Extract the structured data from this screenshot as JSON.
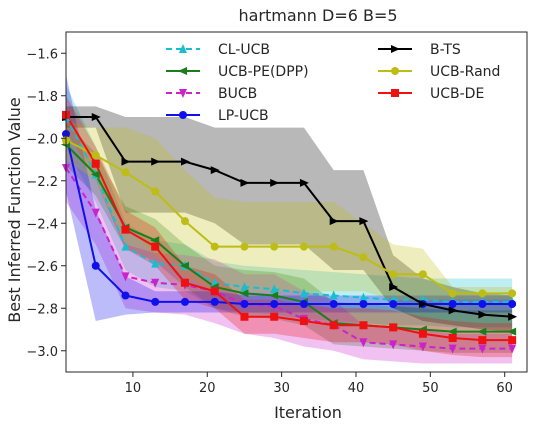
{
  "chart_data": {
    "type": "line",
    "title": "hartmann D=6 B=5",
    "xlabel": "Iteration",
    "ylabel": "Best Inferred Function Value",
    "xlim": [
      1,
      63
    ],
    "ylim": [
      -3.1,
      -1.5
    ],
    "xticks": [
      10,
      20,
      30,
      40,
      50,
      60
    ],
    "yticks": [
      -1.6,
      -1.8,
      -2.0,
      -2.2,
      -2.4,
      -2.6,
      -2.8,
      -3.0
    ],
    "grid": false,
    "legend": "top-center, two columns",
    "x": [
      1,
      5,
      9,
      13,
      17,
      21,
      25,
      29,
      33,
      37,
      41,
      45,
      49,
      53,
      57,
      61
    ],
    "series": [
      {
        "name": "CL-UCB",
        "color": "#17becf",
        "marker": "triangle-up",
        "dash": "dashed",
        "values": [
          -1.9,
          -2.17,
          -2.51,
          -2.59,
          -2.6,
          -2.68,
          -2.7,
          -2.71,
          -2.73,
          -2.74,
          -2.75,
          -2.76,
          -2.76,
          -2.77,
          -2.77,
          -2.77
        ],
        "lower": [
          -2.05,
          -2.3,
          -2.62,
          -2.7,
          -2.72,
          -2.8,
          -2.82,
          -2.83,
          -2.85,
          -2.86,
          -2.87,
          -2.88,
          -2.88,
          -2.89,
          -2.89,
          -2.89
        ],
        "upper": [
          -1.75,
          -2.04,
          -2.4,
          -2.48,
          -2.5,
          -2.58,
          -2.6,
          -2.61,
          -2.62,
          -2.63,
          -2.64,
          -2.65,
          -2.66,
          -2.66,
          -2.66,
          -2.66
        ]
      },
      {
        "name": "UCB-PE(DPP)",
        "color": "#1a7f1a",
        "marker": "triangle-left",
        "dash": "solid",
        "values": [
          -2.03,
          -2.17,
          -2.42,
          -2.48,
          -2.6,
          -2.7,
          -2.73,
          -2.74,
          -2.77,
          -2.87,
          -2.88,
          -2.89,
          -2.9,
          -2.91,
          -2.91,
          -2.91
        ],
        "lower": [
          -2.13,
          -2.27,
          -2.52,
          -2.58,
          -2.7,
          -2.8,
          -2.84,
          -2.85,
          -2.88,
          -2.97,
          -2.98,
          -2.99,
          -3.0,
          -3.01,
          -3.01,
          -3.01
        ],
        "upper": [
          -1.93,
          -2.07,
          -2.32,
          -2.38,
          -2.5,
          -2.6,
          -2.62,
          -2.63,
          -2.66,
          -2.77,
          -2.78,
          -2.79,
          -2.8,
          -2.81,
          -2.81,
          -2.81
        ]
      },
      {
        "name": "BUCB",
        "color": "#cc22cc",
        "marker": "triangle-down",
        "dash": "dashed",
        "values": [
          -2.14,
          -2.35,
          -2.65,
          -2.68,
          -2.69,
          -2.72,
          -2.78,
          -2.79,
          -2.85,
          -2.88,
          -2.96,
          -2.97,
          -2.98,
          -2.99,
          -2.99,
          -2.99
        ],
        "lower": [
          -2.3,
          -2.5,
          -2.8,
          -2.82,
          -2.83,
          -2.87,
          -2.92,
          -2.94,
          -2.98,
          -3.0,
          -3.04,
          -3.05,
          -3.06,
          -3.06,
          -3.06,
          -3.06
        ],
        "upper": [
          -1.98,
          -2.2,
          -2.5,
          -2.54,
          -2.55,
          -2.57,
          -2.64,
          -2.64,
          -2.72,
          -2.76,
          -2.88,
          -2.89,
          -2.9,
          -2.92,
          -2.92,
          -2.92
        ]
      },
      {
        "name": "LP-UCB",
        "color": "#1010ee",
        "marker": "circle",
        "dash": "solid",
        "values": [
          -1.98,
          -2.6,
          -2.74,
          -2.77,
          -2.77,
          -2.77,
          -2.78,
          -2.78,
          -2.78,
          -2.78,
          -2.78,
          -2.78,
          -2.78,
          -2.78,
          -2.78,
          -2.78
        ],
        "lower": [
          -2.25,
          -2.86,
          -2.83,
          -2.82,
          -2.82,
          -2.82,
          -2.82,
          -2.82,
          -2.82,
          -2.82,
          -2.82,
          -2.82,
          -2.82,
          -2.82,
          -2.82,
          -2.82
        ],
        "upper": [
          -1.7,
          -2.34,
          -2.65,
          -2.72,
          -2.72,
          -2.72,
          -2.74,
          -2.74,
          -2.74,
          -2.74,
          -2.74,
          -2.74,
          -2.74,
          -2.74,
          -2.74,
          -2.74
        ]
      },
      {
        "name": "B-TS",
        "color": "#000000",
        "marker": "triangle-right",
        "dash": "solid",
        "values": [
          -1.9,
          -1.9,
          -2.11,
          -2.11,
          -2.11,
          -2.15,
          -2.21,
          -2.21,
          -2.21,
          -2.39,
          -2.39,
          -2.7,
          -2.78,
          -2.81,
          -2.83,
          -2.84
        ],
        "lower": [
          -1.95,
          -1.95,
          -2.35,
          -2.35,
          -2.35,
          -2.4,
          -2.5,
          -2.5,
          -2.5,
          -2.62,
          -2.62,
          -2.8,
          -2.86,
          -2.88,
          -2.9,
          -2.91
        ],
        "upper": [
          -1.85,
          -1.85,
          -1.9,
          -1.9,
          -1.9,
          -1.95,
          -1.95,
          -1.95,
          -1.95,
          -2.15,
          -2.15,
          -2.55,
          -2.66,
          -2.7,
          -2.73,
          -2.74
        ]
      },
      {
        "name": "UCB-Rand",
        "color": "#bdbd16",
        "marker": "circle",
        "dash": "solid",
        "values": [
          -2.01,
          -2.08,
          -2.16,
          -2.25,
          -2.39,
          -2.51,
          -2.51,
          -2.51,
          -2.51,
          -2.51,
          -2.56,
          -2.64,
          -2.64,
          -2.73,
          -2.73,
          -2.73
        ],
        "lower": [
          -2.1,
          -2.2,
          -2.4,
          -2.55,
          -2.65,
          -2.72,
          -2.72,
          -2.72,
          -2.72,
          -2.72,
          -2.72,
          -2.76,
          -2.76,
          -2.76,
          -2.76,
          -2.76
        ],
        "upper": [
          -1.92,
          -1.95,
          -1.95,
          -2.0,
          -2.15,
          -2.28,
          -2.3,
          -2.3,
          -2.3,
          -2.3,
          -2.4,
          -2.5,
          -2.52,
          -2.7,
          -2.7,
          -2.7
        ]
      },
      {
        "name": "UCB-DE",
        "color": "#ee1111",
        "marker": "square",
        "dash": "solid",
        "values": [
          -1.89,
          -2.12,
          -2.43,
          -2.51,
          -2.68,
          -2.72,
          -2.84,
          -2.84,
          -2.86,
          -2.88,
          -2.88,
          -2.89,
          -2.92,
          -2.94,
          -2.95,
          -2.95
        ],
        "lower": [
          -1.97,
          -2.2,
          -2.52,
          -2.6,
          -2.76,
          -2.8,
          -2.92,
          -2.92,
          -2.94,
          -2.96,
          -2.96,
          -2.97,
          -3.0,
          -3.02,
          -3.03,
          -3.03
        ],
        "upper": [
          -1.8,
          -2.04,
          -2.34,
          -2.42,
          -2.6,
          -2.64,
          -2.76,
          -2.76,
          -2.78,
          -2.8,
          -2.8,
          -2.81,
          -2.84,
          -2.86,
          -2.87,
          -2.87
        ]
      }
    ]
  }
}
